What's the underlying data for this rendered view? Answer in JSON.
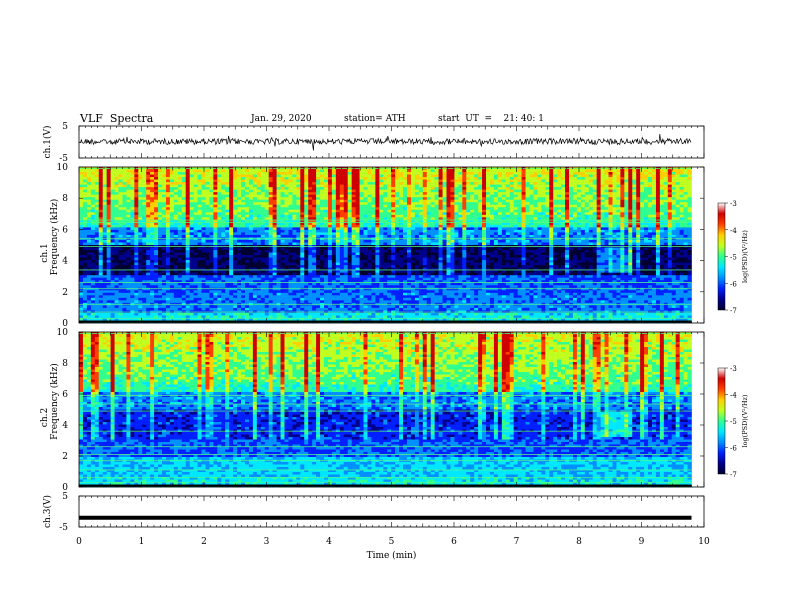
{
  "header": {
    "title": "VLF  Spectra",
    "date": "Jan. 29, 2020",
    "station": "station= ATH",
    "start": "start  UT  =    21: 40: 1"
  },
  "chart_data": [
    {
      "type": "line",
      "panel": "ch1-waveform",
      "ylabel": "ch.1(V)",
      "yticks": [
        "5",
        "-5"
      ],
      "ylim": [
        -5,
        5
      ],
      "xlim": [
        0,
        10
      ],
      "description_level": "noisy waveform around 0 V with small spikes",
      "data_span_min": [
        0,
        9.8
      ]
    },
    {
      "type": "heatmap",
      "panel": "ch1-spectrogram",
      "ylabel_top": "ch.1",
      "ylabel": "Frequency  (kHz)",
      "yticks": [
        "10",
        "8",
        "6",
        "4",
        "2",
        "0"
      ],
      "ylim": [
        0,
        10
      ],
      "xlim": [
        0,
        10
      ],
      "data_span_min": [
        0,
        9.8
      ],
      "colorbar": {
        "label": "log(PSD)(V²/Hz)",
        "ticks": [
          "-3",
          "-4",
          "-5",
          "-6",
          "-7"
        ],
        "range": [
          -7,
          -3
        ]
      }
    },
    {
      "type": "heatmap",
      "panel": "ch2-spectrogram",
      "ylabel_top": "ch.2",
      "ylabel": "Frequency  (kHz)",
      "yticks": [
        "10",
        "8",
        "6",
        "4",
        "2",
        "0"
      ],
      "ylim": [
        0,
        10
      ],
      "xlim": [
        0,
        10
      ],
      "data_span_min": [
        0,
        9.8
      ],
      "colorbar": {
        "label": "log(PSD)(V²/Hz)",
        "ticks": [
          "-3",
          "-4",
          "-5",
          "-6",
          "-7"
        ],
        "range": [
          -7,
          -3
        ]
      }
    },
    {
      "type": "line",
      "panel": "ch3-waveform",
      "ylabel": "ch.3(V)",
      "yticks": [
        "5",
        "-5"
      ],
      "ylim": [
        -5,
        5
      ],
      "xlim": [
        0,
        10
      ],
      "level_volts": -2,
      "data_span_min": [
        0,
        9.8
      ]
    }
  ],
  "xaxis": {
    "label": "Time  (min)",
    "ticks": [
      "0",
      "1",
      "2",
      "3",
      "4",
      "5",
      "6",
      "7",
      "8",
      "9",
      "10"
    ]
  },
  "colors": {
    "colormap": [
      "#000030",
      "#00008b",
      "#0020ff",
      "#0090ff",
      "#00e8ff",
      "#30ff90",
      "#c0ff20",
      "#ffd000",
      "#ff4000",
      "#d00000",
      "#ffffff"
    ]
  }
}
